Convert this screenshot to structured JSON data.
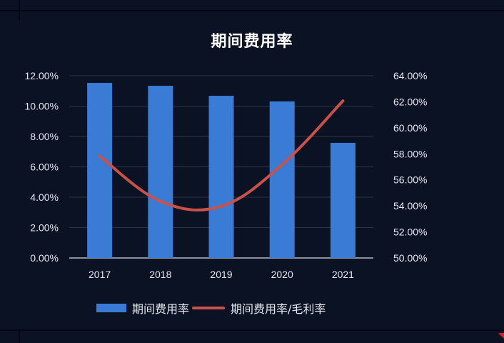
{
  "chart_data": {
    "type": "bar+line",
    "title": "期间费用率",
    "categories": [
      "2017",
      "2018",
      "2019",
      "2020",
      "2021"
    ],
    "series": [
      {
        "name": "期间费用率",
        "type": "bar",
        "axis": "left",
        "color": "#3a7bd5",
        "values": [
          11.53,
          11.34,
          10.68,
          10.31,
          7.58
        ]
      },
      {
        "name": "期间费用率/毛利率",
        "type": "line",
        "axis": "right",
        "color": "#c9514a",
        "values": [
          57.83,
          54.35,
          53.97,
          57.17,
          62.07
        ]
      }
    ],
    "left_axis": {
      "ylim": [
        0,
        12
      ],
      "ticks": [
        "0.00%",
        "2.00%",
        "4.00%",
        "6.00%",
        "8.00%",
        "10.00%",
        "12.00%"
      ]
    },
    "right_axis": {
      "ylim": [
        50,
        64
      ],
      "ticks": [
        "50.00%",
        "52.00%",
        "54.00%",
        "56.00%",
        "58.00%",
        "60.00%",
        "62.00%",
        "64.00%"
      ]
    },
    "xlabel": "",
    "ylabel": "",
    "grid": true,
    "legend_position": "bottom"
  },
  "title": "期间费用率",
  "legend": {
    "bar_label": "期间费用率",
    "line_label": "期间费用率/毛利率"
  },
  "colors": {
    "background": "#0b1224",
    "bar": "#3a7bd5",
    "line": "#c9514a",
    "grid": "#2c3447",
    "text": "#e6e8ee"
  }
}
